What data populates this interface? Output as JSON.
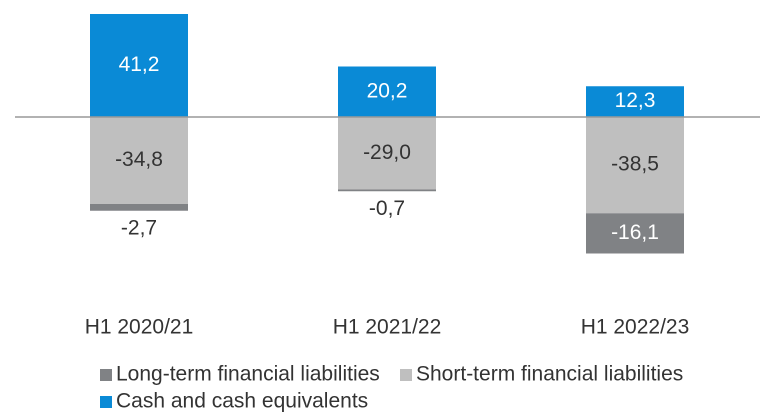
{
  "chart_data": {
    "type": "bar",
    "stacked": true,
    "categories": [
      "H1 2020/21",
      "H1 2021/22",
      "H1 2022/23"
    ],
    "series": [
      {
        "name": "Long-term financial liabilities",
        "color": "#808285",
        "values": [
          -2.7,
          -0.7,
          -16.1
        ],
        "value_labels": [
          "-2,7",
          "-0,7",
          "-16,1"
        ]
      },
      {
        "name": "Short-term financial liabilities",
        "color": "#bfbfbf",
        "values": [
          -34.8,
          -29.0,
          -38.5
        ],
        "value_labels": [
          "-34,8",
          "-29,0",
          "-38,5"
        ]
      },
      {
        "name": "Cash and cash equivalents",
        "color": "#0a8ad6",
        "values": [
          41.2,
          20.2,
          12.3
        ],
        "value_labels": [
          "41,2",
          "20,2",
          "12,3"
        ]
      }
    ],
    "ylim": [
      -60,
      45
    ]
  }
}
